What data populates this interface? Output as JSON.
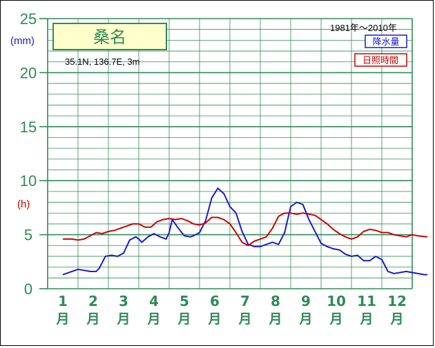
{
  "chart_data": {
    "type": "line",
    "station": "桑名",
    "coords": "35.1N, 136.7E, 3m",
    "period": "1981年〜2010年",
    "unit_precip": "(mm)",
    "unit_sun": "(h)",
    "yticks": [
      "0",
      "5",
      "10",
      "15",
      "20",
      "25"
    ],
    "ylim": [
      0,
      25
    ],
    "months": [
      "1",
      "2",
      "3",
      "4",
      "5",
      "6",
      "7",
      "8",
      "9",
      "10",
      "11",
      "12"
    ],
    "month_suffix": "月",
    "grid": true,
    "series": [
      {
        "name": "降水量",
        "color": "#1a1acc",
        "x": [
          0.5,
          0.8,
          1.0,
          1.2,
          1.4,
          1.6,
          1.7,
          1.9,
          2.1,
          2.3,
          2.5,
          2.7,
          2.9,
          3.0,
          3.1,
          3.3,
          3.5,
          3.7,
          3.9,
          4.0,
          4.1,
          4.3,
          4.5,
          4.7,
          4.8,
          5.0,
          5.2,
          5.4,
          5.6,
          5.8,
          6.0,
          6.2,
          6.4,
          6.6,
          6.8,
          7.0,
          7.2,
          7.4,
          7.6,
          7.8,
          8.0,
          8.2,
          8.4,
          8.6,
          8.8,
          9.0,
          9.2,
          9.4,
          9.6,
          9.8,
          10.0,
          10.2,
          10.4,
          10.6,
          10.8,
          11.0,
          11.2,
          11.4,
          11.6,
          11.8,
          12.0,
          12.2,
          12.4,
          12.5
        ],
        "values": [
          1.3,
          1.6,
          1.8,
          1.7,
          1.6,
          1.6,
          1.9,
          3.0,
          3.1,
          3.0,
          3.3,
          4.5,
          4.8,
          4.6,
          4.3,
          4.8,
          5.1,
          4.8,
          4.6,
          5.2,
          6.4,
          5.6,
          4.9,
          4.8,
          4.9,
          5.2,
          6.3,
          8.4,
          9.3,
          8.8,
          7.6,
          7.0,
          5.3,
          4.1,
          3.9,
          3.9,
          4.1,
          4.3,
          4.1,
          5.2,
          7.6,
          8.0,
          7.8,
          6.4,
          5.3,
          4.2,
          3.9,
          3.7,
          3.6,
          3.2,
          3.0,
          3.1,
          2.6,
          2.6,
          3.0,
          2.7,
          1.6,
          1.4,
          1.5,
          1.6,
          1.5,
          1.4,
          1.3,
          1.3
        ]
      },
      {
        "name": "日照時間",
        "color": "#cc0000",
        "x": [
          0.5,
          0.8,
          1.0,
          1.2,
          1.4,
          1.6,
          1.8,
          2.0,
          2.2,
          2.4,
          2.6,
          2.8,
          3.0,
          3.2,
          3.4,
          3.6,
          3.8,
          4.0,
          4.2,
          4.4,
          4.6,
          4.8,
          5.0,
          5.2,
          5.4,
          5.6,
          5.8,
          6.0,
          6.2,
          6.4,
          6.6,
          6.8,
          7.0,
          7.2,
          7.4,
          7.6,
          7.8,
          8.0,
          8.2,
          8.4,
          8.6,
          8.8,
          9.0,
          9.2,
          9.4,
          9.6,
          9.8,
          10.0,
          10.2,
          10.4,
          10.6,
          10.8,
          11.0,
          11.2,
          11.4,
          11.6,
          11.8,
          12.0,
          12.2,
          12.5
        ],
        "values": [
          4.6,
          4.6,
          4.5,
          4.6,
          4.9,
          5.2,
          5.1,
          5.3,
          5.4,
          5.6,
          5.8,
          6.0,
          6.0,
          5.7,
          5.7,
          6.2,
          6.4,
          6.5,
          6.4,
          6.5,
          6.3,
          6.0,
          5.9,
          6.1,
          6.6,
          6.6,
          6.4,
          6.0,
          5.2,
          4.3,
          4.0,
          4.4,
          4.6,
          4.8,
          5.6,
          6.7,
          7.0,
          7.0,
          6.9,
          7.0,
          6.9,
          6.8,
          6.4,
          6.0,
          5.5,
          5.1,
          4.8,
          4.6,
          4.8,
          5.3,
          5.5,
          5.4,
          5.2,
          5.2,
          5.0,
          4.9,
          4.8,
          5.0,
          4.9,
          4.8
        ]
      }
    ]
  }
}
